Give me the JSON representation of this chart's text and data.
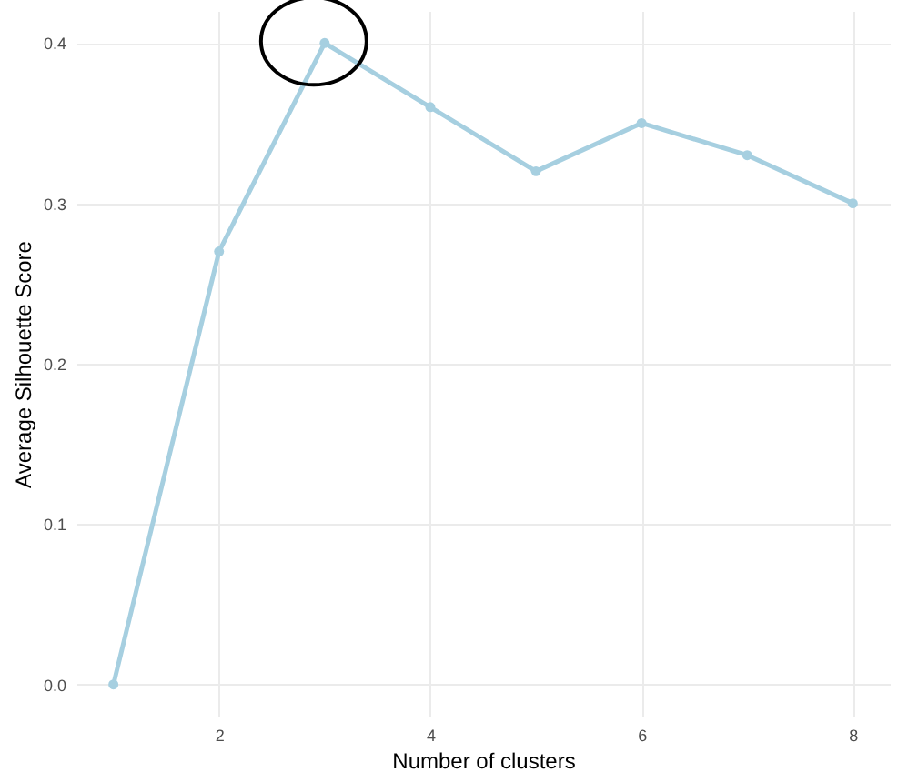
{
  "chart_data": {
    "type": "line",
    "xlabel": "Number of clusters",
    "ylabel": "Average Silhouette Score",
    "x": [
      1,
      2,
      3,
      4,
      5,
      6,
      7,
      8
    ],
    "series": [
      {
        "color": "#a6cfe0",
        "values": [
          0,
          0.27,
          0.4,
          0.36,
          0.32,
          0.35,
          0.33,
          0.3
        ]
      }
    ],
    "xlim": [
      0.65,
      8.35
    ],
    "ylim": [
      -0.02,
      0.42
    ],
    "xticks": [
      2,
      4,
      6,
      8
    ],
    "yticks": [
      {
        "value": 0,
        "label": "0.0"
      },
      0.1,
      0.2,
      0.3,
      0.4
    ],
    "grid": true,
    "marker": "circle",
    "line_style": "solid"
  }
}
